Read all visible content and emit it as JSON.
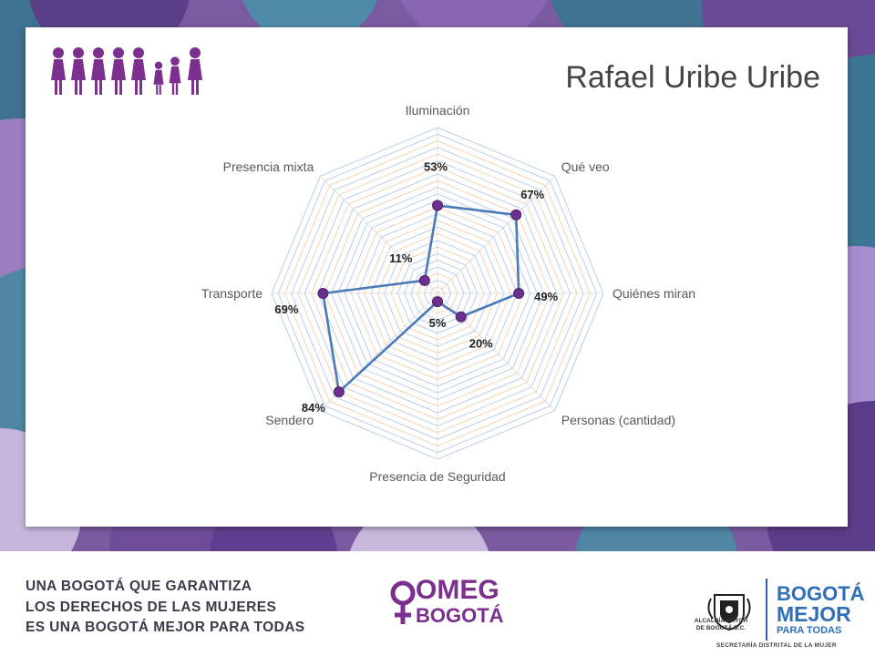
{
  "title": "Rafael Uribe Uribe",
  "colors": {
    "series_line": "#4a7ab8",
    "marker": "#6b2f8e",
    "grid_light": "#f2c8a0",
    "grid_blue": "#a9c4e4",
    "title_text": "#444444",
    "brand_purple": "#7b2f8e",
    "brand_blue": "#2e6fb8"
  },
  "chart_data": {
    "type": "radar",
    "categories": [
      "Iluminación",
      "Qué veo",
      "Quiénes miran",
      "Personas (cantidad)",
      "Presencia de Seguridad",
      "Sendero",
      "Transporte",
      "Presencia mixta"
    ],
    "values": [
      53,
      67,
      49,
      20,
      5,
      84,
      69,
      11
    ],
    "data_labels": [
      "53%",
      "67%",
      "49%",
      "20%",
      "5%",
      "84%",
      "69%",
      "11%"
    ],
    "rlim": [
      0,
      100
    ],
    "grid": true,
    "legend": "none"
  },
  "header_icon": "women-family-icon",
  "footer": {
    "slogan_lines": [
      "UNA BOGOTÁ QUE GARANTIZA",
      "LOS DERECHOS DE LAS MUJERES",
      "ES UNA BOGOTÁ MEJOR PARA TODAS"
    ],
    "omeg_line1": "OMEG",
    "omeg_line2": "BOGOTÁ",
    "crest_line1": "ALCALDÍA MAYOR",
    "crest_line2": "DE BOGOTÁ D.C.",
    "bogota_line1": "BOGOTÁ",
    "bogota_line2": "MEJOR",
    "bogota_line3": "PARA TODAS",
    "secretaria": "SECRETARÍA DISTRITAL DE LA MUJER"
  }
}
